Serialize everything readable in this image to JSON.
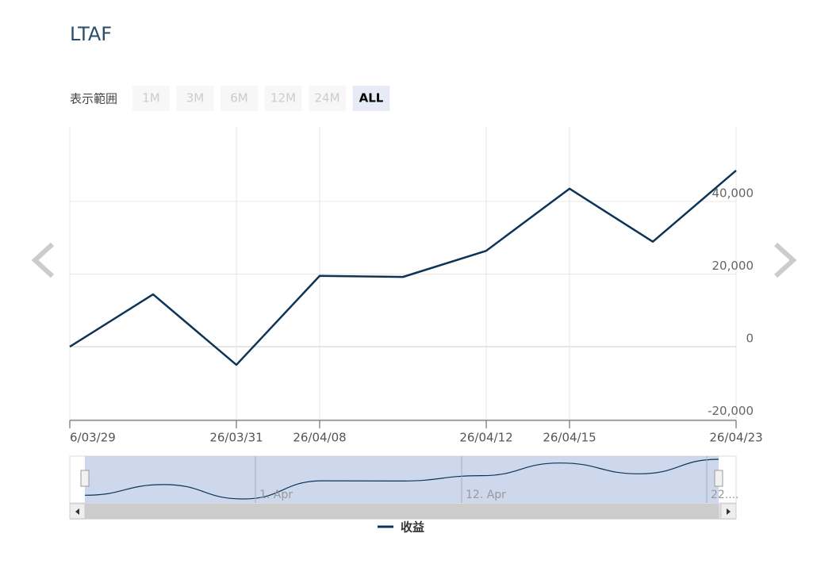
{
  "chart_data": {
    "type": "line",
    "title": "LTAF",
    "range_selector": {
      "label": "表示範囲",
      "buttons": [
        "1M",
        "3M",
        "6M",
        "12M",
        "24M",
        "ALL"
      ],
      "selected": "ALL"
    },
    "categories": [
      "6/03/29",
      null,
      "26/03/31",
      "26/04/08",
      null,
      "26/04/12",
      "26/04/15",
      null,
      "26/04/23"
    ],
    "series": [
      {
        "name": "收益",
        "color": "#0d3456",
        "values": [
          0,
          14400,
          -5000,
          19500,
          19200,
          26400,
          43500,
          28900,
          48500
        ]
      }
    ],
    "ylim": [
      -20300,
      60500
    ],
    "yticks": [
      {
        "value": -20000,
        "label": "-20,000"
      },
      0,
      {
        "value": 20000,
        "label": "20,000"
      },
      {
        "value": 40000,
        "label": "40,000"
      }
    ],
    "grid": true,
    "navigator": {
      "labels": [
        "1. Apr",
        "12. Apr",
        "22...."
      ]
    }
  }
}
